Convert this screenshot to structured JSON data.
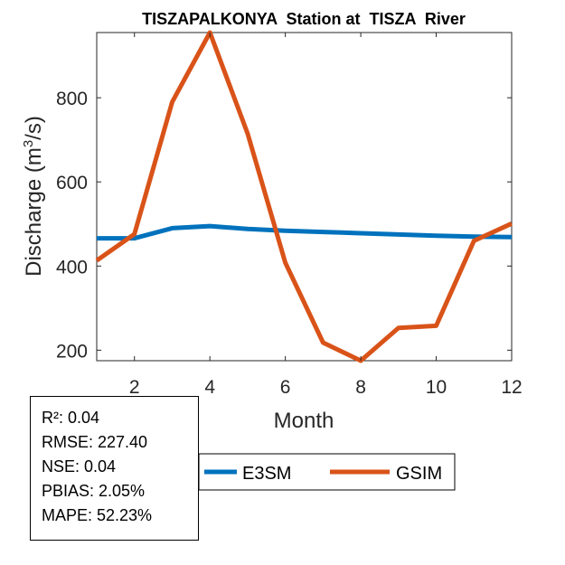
{
  "chart_data": {
    "type": "line",
    "title": "TISZAPALKONYA  Station at  TISZA  River",
    "xlabel": "Month",
    "ylabel_main": "Discharge (m",
    "ylabel_sup": "3",
    "ylabel_end": "/s)",
    "xlim": [
      1,
      12
    ],
    "ylim": [
      175,
      955
    ],
    "xticks": [
      2,
      4,
      6,
      8,
      10,
      12
    ],
    "yticks": [
      200,
      400,
      600,
      800
    ],
    "grid": false,
    "legend_position": "bottom",
    "x": [
      1,
      2,
      3,
      4,
      5,
      6,
      7,
      8,
      9,
      10,
      11,
      12
    ],
    "series": [
      {
        "name": "E3SM",
        "color": "#0072BD",
        "values": [
          466,
          466,
          490,
          495,
          488,
          484,
          481,
          478,
          475,
          472,
          470,
          469
        ]
      },
      {
        "name": "GSIM",
        "color": "#D95319",
        "values": [
          413,
          476,
          790,
          955,
          715,
          408,
          218,
          175,
          253,
          258,
          460,
          501
        ]
      }
    ]
  },
  "stats": {
    "r2": "R²: 0.04",
    "rmse": "RMSE: 227.40",
    "nse": "NSE: 0.04",
    "pbias": "PBIAS: 2.05%",
    "mape": "MAPE: 52.23%"
  }
}
